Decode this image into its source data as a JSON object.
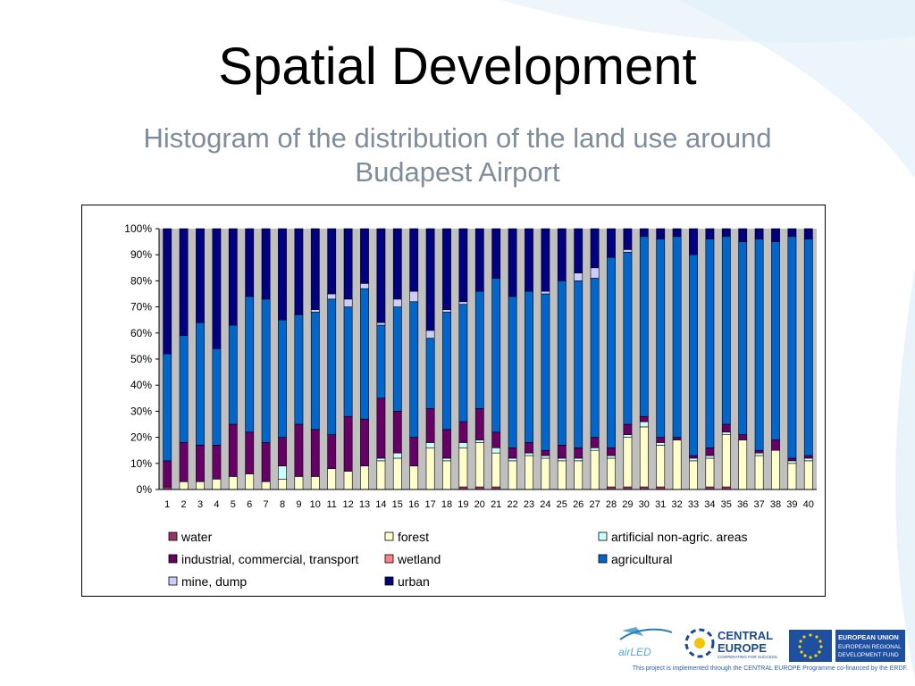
{
  "title": "Spatial Development",
  "subtitle": "Histogram of the distribution of the land use around Budapest Airport",
  "footer_note": "This project is implemented through the CENTRAL EUROPE Programme co-financed by the ERDF.",
  "logos": {
    "airled": "airLED",
    "central_europe_line1": "CENTRAL",
    "central_europe_line2": "EUROPE",
    "central_europe_tagline": "COOPERATING FOR SUCCESS.",
    "eu_line1": "EUROPEAN UNION",
    "eu_line2": "EUROPEAN REGIONAL",
    "eu_line3": "DEVELOPMENT FUND"
  },
  "chart_data": {
    "type": "bar",
    "stacked": true,
    "percent": true,
    "categories": [
      "1",
      "2",
      "3",
      "4",
      "5",
      "6",
      "7",
      "8",
      "9",
      "10",
      "11",
      "12",
      "13",
      "14",
      "15",
      "16",
      "17",
      "18",
      "19",
      "20",
      "21",
      "22",
      "23",
      "24",
      "25",
      "26",
      "27",
      "28",
      "29",
      "30",
      "31",
      "32",
      "33",
      "34",
      "35",
      "36",
      "37",
      "38",
      "39",
      "40"
    ],
    "y_ticks": [
      "0%",
      "10%",
      "20%",
      "30%",
      "40%",
      "50%",
      "60%",
      "70%",
      "80%",
      "90%",
      "100%"
    ],
    "ylim": [
      0,
      100
    ],
    "grid": false,
    "plot_background": "#c0c0c0",
    "legend_position": "bottom",
    "series": [
      {
        "name": "water",
        "color": "#993366",
        "values": [
          1,
          0,
          0,
          0,
          0,
          0,
          0,
          0,
          0,
          0,
          0,
          0,
          0,
          0,
          0,
          0,
          0,
          0,
          1,
          1,
          1,
          0,
          0,
          0,
          0,
          0,
          0,
          1,
          1,
          1,
          1,
          0,
          0,
          1,
          1,
          0,
          0,
          0,
          0,
          0
        ]
      },
      {
        "name": "forest",
        "color": "#ffffcc",
        "values": [
          0,
          3,
          3,
          4,
          5,
          6,
          3,
          4,
          5,
          5,
          8,
          7,
          9,
          11,
          12,
          9,
          16,
          11,
          15,
          17,
          13,
          11,
          13,
          12,
          11,
          11,
          15,
          11,
          19,
          23,
          16,
          19,
          11,
          11,
          20,
          19,
          13,
          15,
          10,
          11
        ]
      },
      {
        "name": "artificial non-agric. areas",
        "color": "#ccffff",
        "values": [
          0,
          0,
          0,
          0,
          0,
          0,
          0,
          5,
          0,
          0,
          0,
          0,
          0,
          1,
          2,
          0,
          2,
          1,
          2,
          1,
          2,
          1,
          1,
          1,
          1,
          1,
          1,
          1,
          1,
          2,
          1,
          0,
          1,
          1,
          1,
          0,
          1,
          0,
          1,
          1
        ]
      },
      {
        "name": "industrial, commercial, transport",
        "color": "#660066",
        "values": [
          10,
          15,
          14,
          13,
          20,
          16,
          15,
          11,
          20,
          18,
          13,
          21,
          18,
          23,
          16,
          11,
          13,
          11,
          8,
          12,
          6,
          4,
          4,
          2,
          5,
          4,
          4,
          3,
          4,
          2,
          2,
          1,
          1,
          3,
          3,
          2,
          1,
          4,
          1,
          1
        ]
      },
      {
        "name": "wetland",
        "color": "#ff8080",
        "values": [
          0,
          0,
          0,
          0,
          0,
          0,
          0,
          0,
          0,
          0,
          0,
          0,
          0,
          0,
          0,
          0,
          0,
          0,
          0,
          0,
          0,
          0,
          0,
          0,
          0,
          0,
          0,
          0,
          0,
          0,
          0,
          0,
          0,
          0,
          0,
          0,
          0,
          0,
          0,
          0
        ]
      },
      {
        "name": "agricultural",
        "color": "#0066cc",
        "values": [
          41,
          41,
          47,
          37,
          38,
          52,
          55,
          45,
          42,
          45,
          52,
          42,
          50,
          28,
          40,
          52,
          27,
          45,
          45,
          45,
          59,
          58,
          58,
          60,
          63,
          64,
          61,
          73,
          66,
          69,
          76,
          77,
          77,
          80,
          72,
          74,
          81,
          76,
          85,
          83
        ]
      },
      {
        "name": "mine, dump",
        "color": "#ccccff",
        "values": [
          0,
          0,
          0,
          0,
          0,
          0,
          0,
          0,
          0,
          1,
          2,
          3,
          2,
          1,
          3,
          4,
          3,
          1,
          1,
          0,
          0,
          0,
          0,
          1,
          0,
          3,
          4,
          0,
          1,
          0,
          0,
          0,
          0,
          0,
          0,
          0,
          0,
          0,
          0,
          0
        ]
      },
      {
        "name": "urban",
        "color": "#000080",
        "values": [
          48,
          41,
          36,
          46,
          37,
          26,
          27,
          35,
          33,
          31,
          25,
          27,
          21,
          36,
          27,
          24,
          39,
          31,
          28,
          24,
          19,
          26,
          24,
          24,
          20,
          17,
          15,
          11,
          8,
          3,
          4,
          3,
          10,
          4,
          3,
          5,
          4,
          5,
          3,
          4
        ]
      }
    ],
    "legend_order": [
      "water",
      "forest",
      "artificial non-agric. areas",
      "industrial, commercial, transport",
      "wetland",
      "agricultural",
      "mine, dump",
      "urban"
    ]
  }
}
